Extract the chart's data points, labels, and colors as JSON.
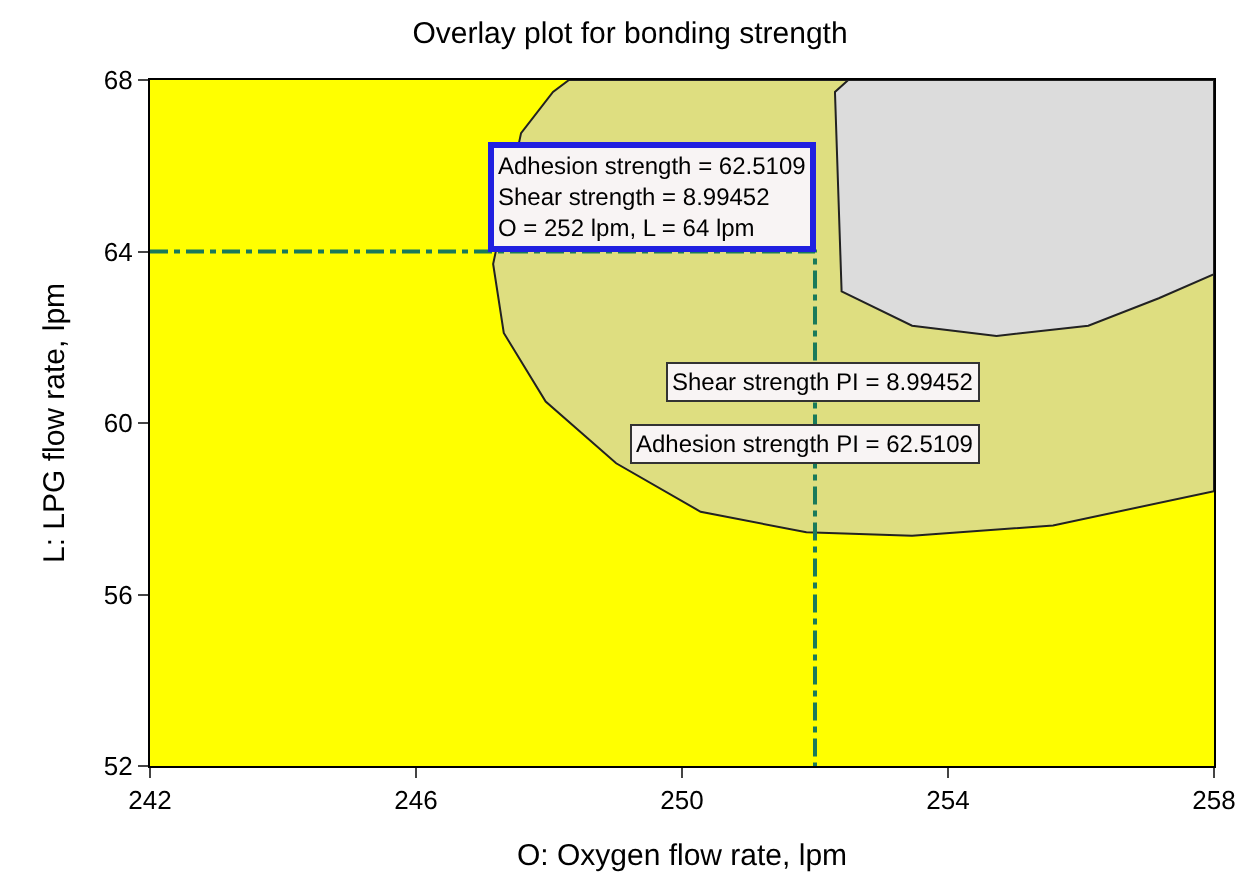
{
  "chart_data": {
    "type": "area",
    "title": "Overlay plot for bonding strength",
    "xlabel": "O: Oxygen flow rate, lpm",
    "ylabel": "L: LPG flow rate, lpm",
    "xlim": [
      242,
      258
    ],
    "ylim": [
      52,
      68
    ],
    "xticks": [
      242,
      246,
      250,
      254,
      258
    ],
    "yticks": [
      52,
      56,
      60,
      64,
      68
    ],
    "grid": false,
    "bands": [
      {
        "axis": "y",
        "from": 52,
        "to": 68,
        "color": "#ffff00"
      }
    ],
    "series": [
      {
        "color": "#dede80",
        "x": [
          248.3,
          248.06,
          247.58,
          247.16,
          247.32,
          247.95,
          249.01,
          250.28,
          251.87,
          253.46,
          255.58,
          258,
          258,
          248.3
        ],
        "values": [
          68,
          67.72,
          66.76,
          63.71,
          62.1,
          60.5,
          59.06,
          57.93,
          57.45,
          57.37,
          57.61,
          58.41,
          68,
          68
        ]
      },
      {
        "color": "#dcdcdc",
        "x": [
          252.5,
          252.3,
          252.4,
          253.46,
          254.73,
          256.11,
          257.17,
          258,
          258,
          252.5
        ],
        "values": [
          68,
          67.72,
          63.07,
          62.27,
          62.03,
          62.27,
          62.91,
          63.47,
          68,
          68
        ]
      },
      {
        "type": "line",
        "color": "#1a7a5a",
        "line_style": "dashed",
        "x": [
          242,
          252,
          252
        ],
        "values": [
          64,
          64,
          52
        ]
      }
    ],
    "annotations": [
      {
        "text": "Adhesion strength = 62.5109\nShear strength = 8.99452\nO = 252 lpm, L = 64 lpm",
        "x": 252,
        "y": 64
      },
      "Shear strength PI = 8.99452",
      "Adhesion strength PI = 62.5109"
    ]
  }
}
